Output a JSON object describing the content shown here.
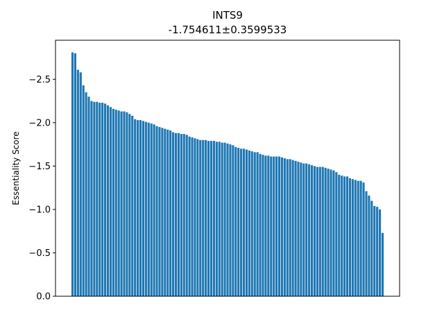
{
  "chart_data": {
    "type": "bar",
    "title": "INTS9",
    "subtitle": "-1.754611±0.3599533",
    "xlabel": "",
    "ylabel": "Essentiality Score",
    "ylim": [
      0.0,
      -2.95
    ],
    "y_inverted": true,
    "grid": false,
    "color": "#1f77b4",
    "yticks": [
      0.0,
      -0.5,
      -1.0,
      -1.5,
      -2.0,
      -2.5
    ],
    "ytick_labels": [
      "0.0",
      "−0.5",
      "−1.0",
      "−1.5",
      "−2.0",
      "−2.5"
    ],
    "values": [
      -2.81,
      -2.8,
      -2.61,
      -2.58,
      -2.43,
      -2.35,
      -2.3,
      -2.25,
      -2.24,
      -2.24,
      -2.23,
      -2.23,
      -2.22,
      -2.2,
      -2.18,
      -2.16,
      -2.15,
      -2.14,
      -2.13,
      -2.13,
      -2.12,
      -2.1,
      -2.08,
      -2.04,
      -2.03,
      -2.03,
      -2.02,
      -2.01,
      -2.0,
      -1.99,
      -1.98,
      -1.96,
      -1.95,
      -1.94,
      -1.93,
      -1.92,
      -1.91,
      -1.89,
      -1.88,
      -1.88,
      -1.87,
      -1.87,
      -1.86,
      -1.84,
      -1.83,
      -1.82,
      -1.81,
      -1.8,
      -1.8,
      -1.8,
      -1.79,
      -1.79,
      -1.79,
      -1.78,
      -1.78,
      -1.77,
      -1.77,
      -1.76,
      -1.75,
      -1.74,
      -1.72,
      -1.71,
      -1.7,
      -1.7,
      -1.69,
      -1.68,
      -1.67,
      -1.66,
      -1.66,
      -1.64,
      -1.63,
      -1.62,
      -1.62,
      -1.61,
      -1.61,
      -1.61,
      -1.61,
      -1.6,
      -1.59,
      -1.58,
      -1.58,
      -1.57,
      -1.56,
      -1.55,
      -1.54,
      -1.53,
      -1.53,
      -1.52,
      -1.51,
      -1.5,
      -1.49,
      -1.49,
      -1.49,
      -1.48,
      -1.47,
      -1.46,
      -1.45,
      -1.43,
      -1.4,
      -1.39,
      -1.38,
      -1.38,
      -1.36,
      -1.35,
      -1.34,
      -1.33,
      -1.33,
      -1.31,
      -1.21,
      -1.16,
      -1.1,
      -1.04,
      -1.03,
      -1.0,
      -0.73
    ]
  }
}
